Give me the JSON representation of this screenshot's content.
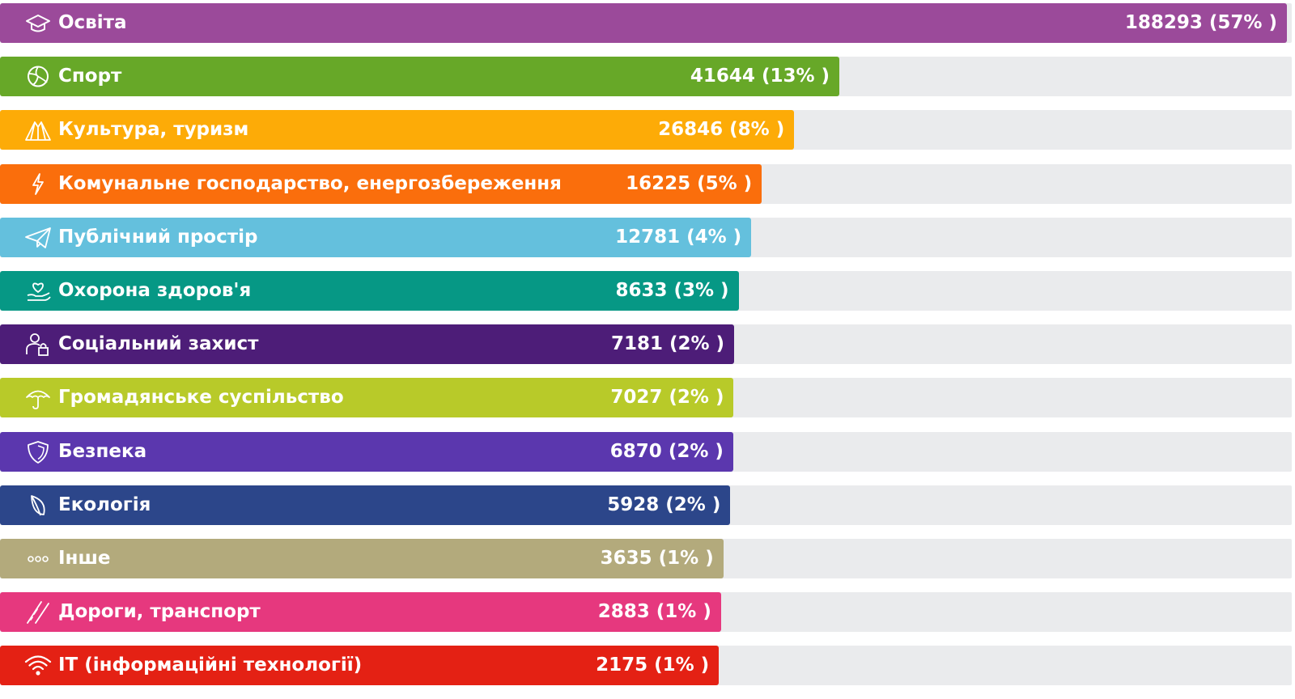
{
  "chart_data": {
    "type": "bar",
    "orientation": "horizontal",
    "categories": [
      "Освіта",
      "Спорт",
      "Культура, туризм",
      "Комунальне господарство, енергозбереження",
      "Публічний простір",
      "Охорона здоров'я",
      "Соціальний захист",
      "Громадянське суспільство",
      "Безпека",
      "Екологія",
      "Інше",
      "Дороги, транспорт",
      "IT (інформаційні технології)"
    ],
    "values": [
      188293,
      41644,
      26846,
      16225,
      12781,
      8633,
      7181,
      7027,
      6870,
      5928,
      3635,
      2883,
      2175
    ],
    "value_labels": [
      "188293 (57% )",
      "41644 (13% )",
      "26846 (8% )",
      "16225 (5% )",
      "12781 (4% )",
      "8633 (3% )",
      "7181 (2% )",
      "7027 (2% )",
      "6870 (2% )",
      "5928 (2% )",
      "3635 (1% )",
      "2883 (1% )",
      "2175 (1% )"
    ],
    "icons": [
      "graduation-cap-icon",
      "volleyball-icon",
      "tent-icon",
      "lightning-icon",
      "paper-plane-icon",
      "heart-hand-icon",
      "person-lock-icon",
      "umbrella-icon",
      "shield-icon",
      "leaf-icon",
      "dots-icon",
      "road-icon",
      "wifi-icon"
    ],
    "colors": [
      "#9b4a9a",
      "#67a828",
      "#fdab07",
      "#fa6e0c",
      "#64c0dd",
      "#069885",
      "#4d1d78",
      "#b8ca29",
      "#5b37ae",
      "#2c468a",
      "#b3aa7c",
      "#e6387e",
      "#e42114"
    ],
    "track_color": "#eaebed",
    "title": "",
    "xlabel": "",
    "ylabel": "",
    "grid": false,
    "legend": "none"
  }
}
